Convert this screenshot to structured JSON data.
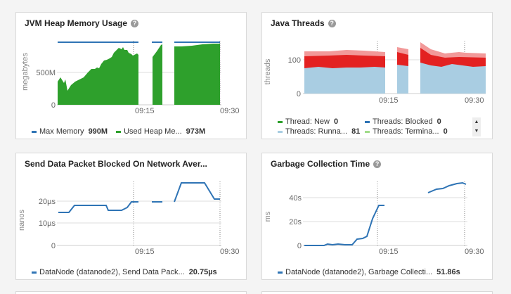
{
  "colors": {
    "blue": "#2f74b5",
    "green": "#2ea02c",
    "red": "#e32121",
    "pink": "#f29999",
    "lightblue": "#a9cde2",
    "lightgreen": "#a1dc8a",
    "grid": "#cccccc"
  },
  "cards": {
    "jvm": {
      "title": "JVM Heap Memory Usage",
      "ylabel": "megabytes",
      "yticks": [
        "500M",
        "0"
      ],
      "xticks": [
        "09:15",
        "09:30"
      ],
      "legend": [
        {
          "name": "Max Memory",
          "value": "990M",
          "color": "#2f74b5"
        },
        {
          "name": "Used Heap Me...",
          "value": "973M",
          "color": "#2ea02c"
        }
      ]
    },
    "threads": {
      "title": "Java Threads",
      "ylabel": "threads",
      "yticks": [
        "100",
        "0"
      ],
      "xticks": [
        "09:15",
        "09:30"
      ],
      "legend": [
        {
          "name": "Thread: New",
          "value": "0",
          "color": "#2ea02c"
        },
        {
          "name": "Threads: Blocked",
          "value": "0",
          "color": "#2f74b5"
        },
        {
          "name": "Threads: Runna...",
          "value": "81",
          "color": "#a9cde2"
        },
        {
          "name": "Threads: Termina...",
          "value": "0",
          "color": "#a1dc8a"
        }
      ]
    },
    "packet": {
      "title": "Send Data Packet Blocked On Network Aver...",
      "ylabel": "nanos",
      "yticks": [
        "20µs",
        "10µs",
        "0"
      ],
      "xticks": [
        "09:15",
        "09:30"
      ],
      "legend": [
        {
          "name": "DataNode (datanode2), Send Data Pack...",
          "value": "20.75µs",
          "color": "#2f74b5"
        }
      ]
    },
    "gc": {
      "title": "Garbage Collection Time",
      "ylabel": "ms",
      "yticks": [
        "40s",
        "20s",
        "0"
      ],
      "xticks": [
        "09:15",
        "09:30"
      ],
      "legend": [
        {
          "name": "DataNode (datanode2), Garbage Collecti...",
          "value": "51.86s",
          "color": "#2f74b5"
        }
      ]
    }
  },
  "chart_data": [
    {
      "type": "area",
      "title": "JVM Heap Memory Usage",
      "ylabel": "megabytes",
      "x_range": [
        "09:00",
        "09:30"
      ],
      "ylim": [
        0,
        1000
      ],
      "series": [
        {
          "name": "Max Memory",
          "type": "line",
          "x": [
            0,
            0.75,
            0.8,
            1.0
          ],
          "values": [
            990,
            990,
            990,
            990
          ]
        },
        {
          "name": "Used Heap Me...",
          "type": "area",
          "x": [
            0,
            0.1,
            0.3,
            0.5,
            0.59,
            0.73,
            1.0
          ],
          "values": [
            350,
            250,
            500,
            880,
            840,
            900,
            973
          ]
        }
      ]
    },
    {
      "type": "area",
      "title": "Java Threads",
      "ylabel": "threads",
      "x_range": [
        "09:00",
        "09:30"
      ],
      "ylim": [
        0,
        130
      ],
      "series": [
        {
          "name": "Threads: Runna...",
          "values": [
            81,
            80,
            82,
            81
          ]
        },
        {
          "name": "Threads: Blocked",
          "values": [
            0,
            0,
            0,
            0
          ]
        },
        {
          "name": "Thread: New",
          "values": [
            0,
            0,
            0,
            0
          ]
        },
        {
          "name": "Threads: Termina...",
          "values": [
            0,
            0,
            0,
            0
          ]
        }
      ]
    },
    {
      "type": "line",
      "title": "Send Data Packet Blocked On Network Aver...",
      "ylabel": "nanos",
      "x_range": [
        "09:00",
        "09:30"
      ],
      "ylim": [
        0,
        30
      ],
      "series": [
        {
          "name": "DataNode (datanode2), Send Data Pack...",
          "values": [
            14.5,
            14.5,
            18,
            18,
            18,
            15.5,
            15.5,
            16.5,
            19.5,
            19.5,
            27.5,
            27.5,
            20.75
          ]
        }
      ]
    },
    {
      "type": "line",
      "title": "Garbage Collection Time",
      "ylabel": "ms",
      "x_range": [
        "09:00",
        "09:30"
      ],
      "ylim": [
        0,
        55
      ],
      "series": [
        {
          "name": "DataNode (datanode2), Garbage Collecti...",
          "values": [
            0,
            0,
            0.5,
            0.5,
            5,
            6,
            34,
            34,
            44,
            48,
            51,
            52.5,
            51.86
          ]
        }
      ]
    }
  ]
}
